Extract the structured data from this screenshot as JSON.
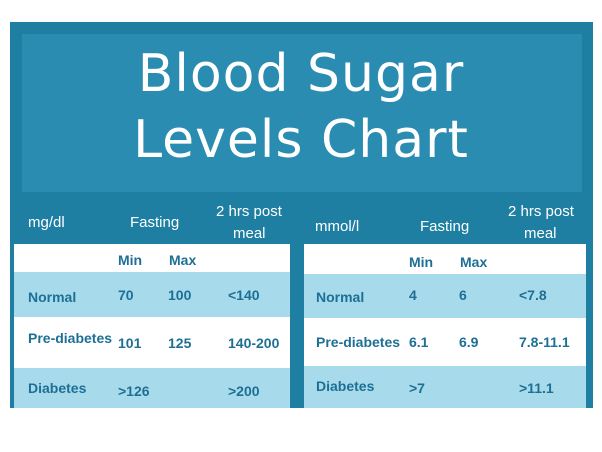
{
  "title": {
    "line1": "Blood Sugar",
    "line2": "Levels Chart"
  },
  "left_table": {
    "unit": "mg/dl",
    "fasting": "Fasting",
    "post_meal_line1": "2 hrs post",
    "post_meal_line2": "meal",
    "min": "Min",
    "max": "Max",
    "rows": [
      {
        "label": "Normal",
        "min": "70",
        "max": "100",
        "post": "<140"
      },
      {
        "label": "Pre-diabetes",
        "min": "101",
        "max": "125",
        "post": "140-200"
      },
      {
        "label": "Diabetes",
        "min": ">126",
        "max": "",
        "post": ">200"
      }
    ]
  },
  "right_table": {
    "unit": "mmol/l",
    "fasting": "Fasting",
    "post_meal_line1": "2 hrs post",
    "post_meal_line2": "meal",
    "min": "Min",
    "max": "Max",
    "rows": [
      {
        "label": "Normal",
        "min": "4",
        "max": "6",
        "post": "<7.8"
      },
      {
        "label": "Pre-diabetes",
        "min": "6.1",
        "max": "6.9",
        "post": "7.8-11.1"
      },
      {
        "label": "Diabetes",
        "min": ">7",
        "max": "",
        "post": ">11.1"
      }
    ]
  },
  "colors": {
    "frame": "#1e7fa2",
    "title_bg": "#2a8cb0",
    "row_light": "#a7dbeb",
    "text_dark": "#1e6f95"
  }
}
